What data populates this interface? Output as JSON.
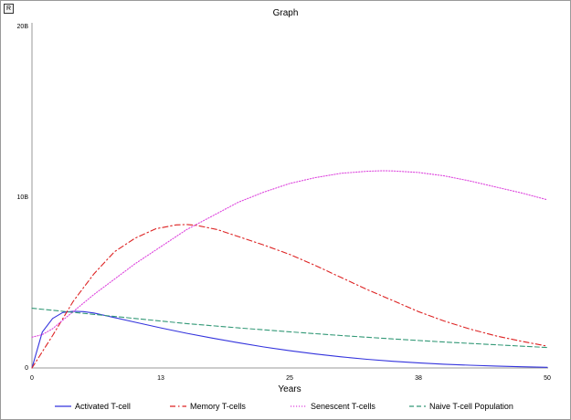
{
  "window": {
    "corner_button_label": "R"
  },
  "chart_data": {
    "type": "line",
    "title": "Graph",
    "xlabel": "Years",
    "ylabel": "",
    "xlim": [
      0,
      50
    ],
    "ylim": [
      0,
      20000000000
    ],
    "x_ticks": [
      {
        "value": 0,
        "label": "0"
      },
      {
        "value": 12.5,
        "label": "13"
      },
      {
        "value": 25,
        "label": "25"
      },
      {
        "value": 37.5,
        "label": "38"
      },
      {
        "value": 50,
        "label": "50"
      }
    ],
    "y_ticks": [
      {
        "value": 0,
        "label": "0"
      },
      {
        "value": 10000000000,
        "label": "10B"
      },
      {
        "value": 20000000000,
        "label": "20B"
      }
    ],
    "grid": false,
    "legend_position": "bottom",
    "series": [
      {
        "name": "Activated T-cell",
        "color": "#3333dd",
        "dash": "solid",
        "x": [
          0,
          1,
          2,
          3,
          4,
          5,
          6,
          8,
          10,
          12.5,
          15,
          17.5,
          20,
          22.5,
          25,
          27.5,
          30,
          32.5,
          35,
          37.5,
          40,
          42.5,
          45,
          47.5,
          50
        ],
        "y": [
          0,
          2100000000,
          2900000000,
          3250000000,
          3320000000,
          3300000000,
          3220000000,
          2950000000,
          2680000000,
          2350000000,
          2030000000,
          1750000000,
          1480000000,
          1230000000,
          1010000000,
          820000000,
          650000000,
          510000000,
          390000000,
          300000000,
          220000000,
          160000000,
          110000000,
          70000000,
          40000000
        ]
      },
      {
        "name": "Memory T-cells",
        "color": "#dd2222",
        "dash": "dashdot",
        "x": [
          0,
          2,
          4,
          6,
          8,
          10,
          12,
          14,
          15,
          16,
          18,
          20,
          22.5,
          25,
          27.5,
          30,
          32.5,
          35,
          37.5,
          40,
          42.5,
          45,
          47.5,
          50
        ],
        "y": [
          0,
          1900000000,
          3900000000,
          5500000000,
          6800000000,
          7600000000,
          8150000000,
          8380000000,
          8400000000,
          8350000000,
          8100000000,
          7700000000,
          7200000000,
          6650000000,
          6000000000,
          5300000000,
          4600000000,
          3950000000,
          3300000000,
          2750000000,
          2280000000,
          1880000000,
          1560000000,
          1280000000
        ]
      },
      {
        "name": "Senescent T-cells",
        "color": "#dd44dd",
        "dash": "dotted",
        "x": [
          0,
          1,
          2,
          3,
          4,
          6,
          8,
          10,
          12.5,
          15,
          17.5,
          20,
          22.5,
          25,
          27.5,
          30,
          32.5,
          34,
          35,
          37.5,
          40,
          42.5,
          45,
          47.5,
          50
        ],
        "y": [
          1800000000,
          1950000000,
          2300000000,
          2800000000,
          3300000000,
          4300000000,
          5200000000,
          6100000000,
          7100000000,
          8100000000,
          8900000000,
          9700000000,
          10300000000,
          10800000000,
          11150000000,
          11400000000,
          11520000000,
          11550000000,
          11540000000,
          11450000000,
          11250000000,
          10950000000,
          10600000000,
          10250000000,
          9850000000
        ]
      },
      {
        "name": "Naive T-cell Population",
        "color": "#339977",
        "dash": "dashed",
        "x": [
          0,
          5,
          10,
          15,
          20,
          25,
          30,
          35,
          40,
          45,
          50
        ],
        "y": [
          3500000000,
          3200000000,
          2900000000,
          2600000000,
          2350000000,
          2120000000,
          1900000000,
          1700000000,
          1520000000,
          1360000000,
          1200000000
        ]
      }
    ]
  }
}
